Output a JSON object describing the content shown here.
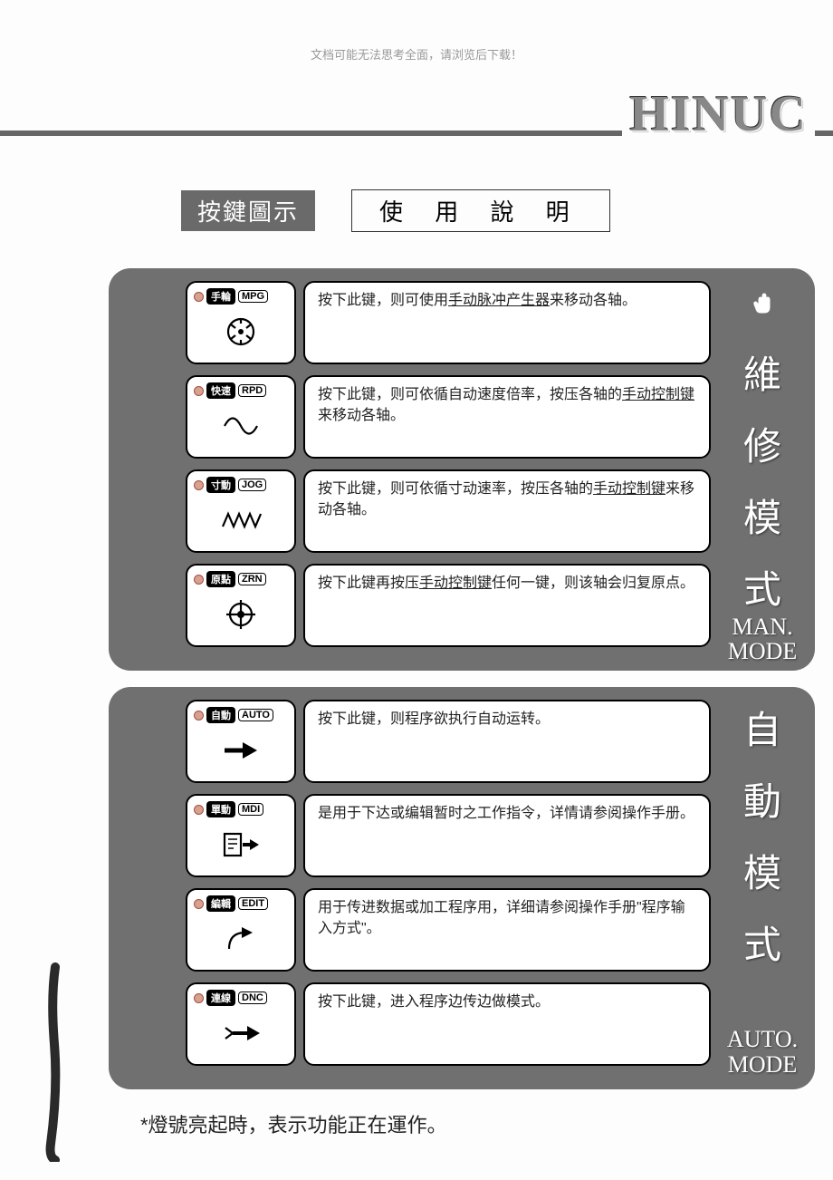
{
  "top_note": "文档可能无法思考全面，请浏览后下载！",
  "logo": "HINUC",
  "title_left": "按鍵圖示",
  "title_right": "使 用 說 明",
  "panels": [
    {
      "side_cn": [
        "維",
        "修",
        "模",
        "式"
      ],
      "side_en_line1": "MAN.",
      "side_en_line2": "MODE",
      "side_icon": "hand",
      "rows": [
        {
          "cn": "手輪",
          "en": "MPG",
          "icon": "wheel",
          "desc_pre": "按下此键，则可使用",
          "desc_u": "手动脉冲产生器",
          "desc_post": "来移动各轴。"
        },
        {
          "cn": "快速",
          "en": "RPD",
          "icon": "sine",
          "desc_pre": "按下此键，则可依循自动速度倍率，按压各轴的",
          "desc_u": "手动控制键",
          "desc_post": "来移动各轴。"
        },
        {
          "cn": "寸動",
          "en": "JOG",
          "icon": "zigzag",
          "desc_pre": "按下此键，则可依循寸动速率，按压各轴的",
          "desc_u": "手动控制键",
          "desc_post": "来移动各轴。"
        },
        {
          "cn": "原點",
          "en": "ZRN",
          "icon": "crosshair",
          "desc_pre": "按下此键再按压",
          "desc_u": "手动控制键",
          "desc_post": "任何一键，则该轴会归复原点。"
        }
      ]
    },
    {
      "side_cn": [
        "自",
        "動",
        "模",
        "式"
      ],
      "side_en_line1": "AUTO.",
      "side_en_line2": "MODE",
      "side_icon": "",
      "rows": [
        {
          "cn": "自動",
          "en": "AUTO",
          "icon": "arrow-solid",
          "desc_pre": "按下此键，则程序欲执行自动运转。",
          "desc_u": "",
          "desc_post": ""
        },
        {
          "cn": "單動",
          "en": "MDI",
          "icon": "page-arrow",
          "desc_pre": "是用于下达或编辑暂时之工作指令，详情请参阅操作手册。",
          "desc_u": "",
          "desc_post": ""
        },
        {
          "cn": "編輯",
          "en": "EDIT",
          "icon": "arrow-curve",
          "desc_pre": "用于传进数据或加工程序用，详细请参阅操作手册\"程序输入方式\"。",
          "desc_u": "",
          "desc_post": ""
        },
        {
          "cn": "連線",
          "en": "DNC",
          "icon": "arrow-tail",
          "desc_pre": "按下此键，进入程序边传边做模式。",
          "desc_u": "",
          "desc_post": ""
        }
      ]
    }
  ],
  "footnote": "*燈號亮起時，表示功能正在運作。",
  "colors": {
    "panel_bg": "#707070",
    "led": "#d8a090",
    "text": "#222222"
  }
}
